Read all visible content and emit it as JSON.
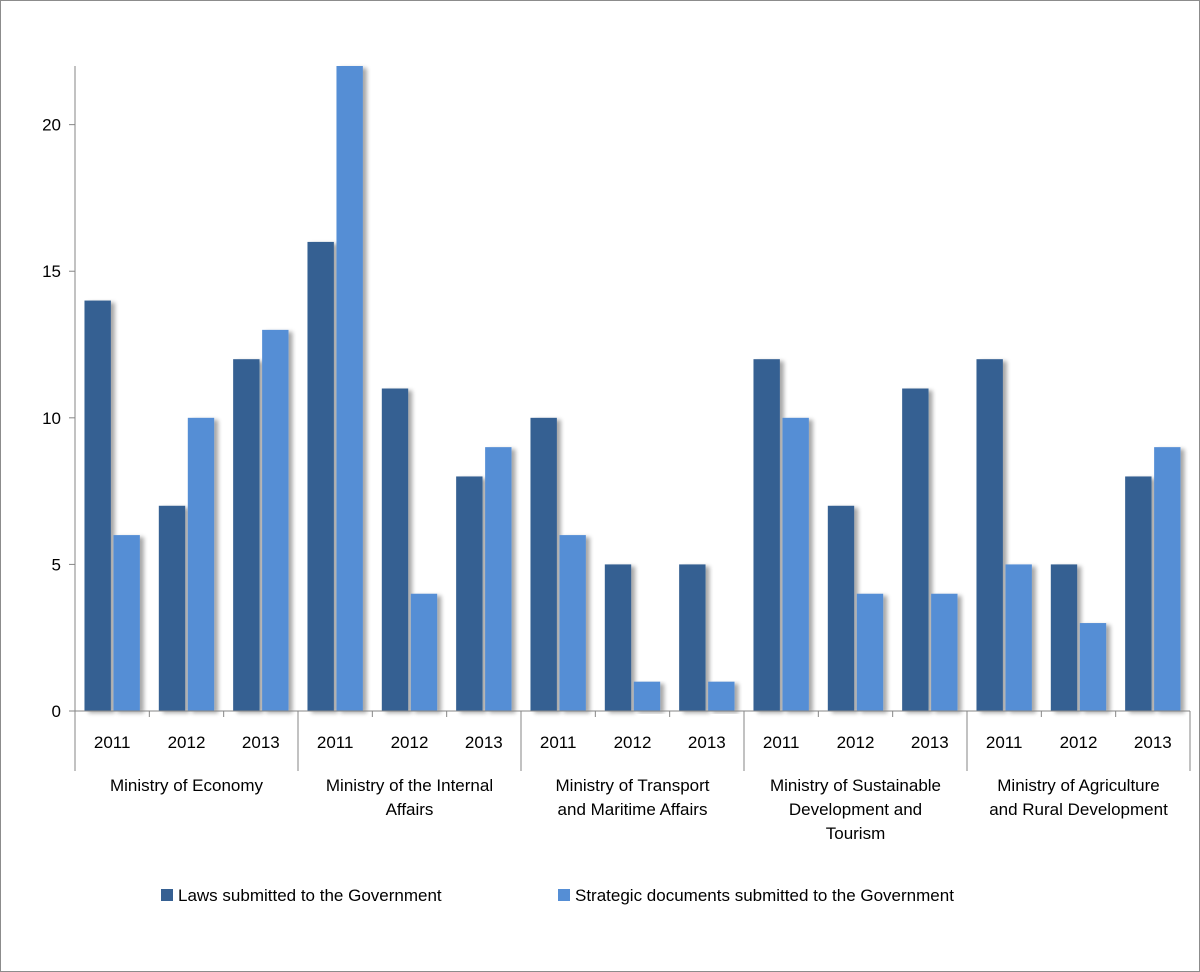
{
  "chart_data": {
    "type": "bar",
    "groups": [
      {
        "label_lines": [
          "Ministry of Economy"
        ],
        "years": [
          "2011",
          "2012",
          "2013"
        ]
      },
      {
        "label_lines": [
          "Ministry of the Internal",
          "Affairs"
        ],
        "years": [
          "2011",
          "2012",
          "2013"
        ]
      },
      {
        "label_lines": [
          "Ministry of Transport",
          "and Maritime Affairs"
        ],
        "years": [
          "2011",
          "2012",
          "2013"
        ]
      },
      {
        "label_lines": [
          "Ministry of Sustainable",
          "Development and",
          "Tourism"
        ],
        "years": [
          "2011",
          "2012",
          "2013"
        ]
      },
      {
        "label_lines": [
          "Ministry of Agriculture",
          "and Rural Development"
        ],
        "years": [
          "2011",
          "2012",
          "2013"
        ]
      }
    ],
    "series": [
      {
        "name": "Laws submitted to the Government",
        "color": "#366092",
        "values": [
          14,
          7,
          12,
          16,
          11,
          8,
          10,
          5,
          5,
          12,
          7,
          11,
          12,
          5,
          8
        ]
      },
      {
        "name": "Strategic documents submitted to the Government",
        "color": "#558ED5",
        "values": [
          6,
          10,
          13,
          22,
          4,
          9,
          6,
          1,
          1,
          10,
          4,
          4,
          5,
          3,
          9
        ]
      }
    ],
    "yticks": [
      0,
      5,
      10,
      15,
      20
    ],
    "ylim": [
      0,
      22
    ],
    "grid": false,
    "legend_position": "bottom"
  }
}
